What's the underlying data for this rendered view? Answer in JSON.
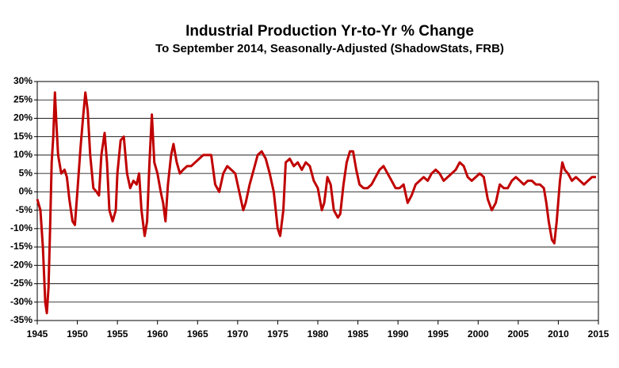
{
  "chart_data": {
    "type": "line",
    "title": "Industrial Production Yr-to-Yr % Change",
    "subtitle": "To September 2014, Seasonally-Adjusted (ShadowStats, FRB)",
    "color": "#c00000",
    "grid": true,
    "x": [
      1945.0,
      1945.4,
      1945.7,
      1946.0,
      1946.2,
      1946.4,
      1946.6,
      1946.8,
      1947.0,
      1947.2,
      1947.4,
      1947.6,
      1948.0,
      1948.4,
      1948.7,
      1949.0,
      1949.4,
      1949.7,
      1950.0,
      1950.4,
      1950.7,
      1951.0,
      1951.3,
      1951.6,
      1952.0,
      1952.4,
      1952.7,
      1953.0,
      1953.4,
      1953.7,
      1954.0,
      1954.4,
      1954.8,
      1955.0,
      1955.4,
      1955.8,
      1956.2,
      1956.6,
      1957.0,
      1957.4,
      1957.7,
      1958.0,
      1958.4,
      1958.7,
      1959.0,
      1959.3,
      1959.6,
      1960.0,
      1960.4,
      1960.7,
      1961.0,
      1961.3,
      1961.7,
      1962.0,
      1962.4,
      1962.8,
      1963.2,
      1963.7,
      1964.2,
      1964.7,
      1965.2,
      1965.7,
      1966.2,
      1966.7,
      1967.2,
      1967.7,
      1968.2,
      1968.7,
      1969.2,
      1969.7,
      1970.2,
      1970.7,
      1971.0,
      1971.5,
      1972.0,
      1972.5,
      1973.0,
      1973.5,
      1974.0,
      1974.5,
      1975.0,
      1975.3,
      1975.7,
      1976.0,
      1976.5,
      1977.0,
      1977.5,
      1978.0,
      1978.5,
      1979.0,
      1979.5,
      1980.0,
      1980.5,
      1980.8,
      1981.2,
      1981.6,
      1982.0,
      1982.5,
      1982.8,
      1983.2,
      1983.6,
      1984.0,
      1984.4,
      1984.8,
      1985.2,
      1985.7,
      1986.2,
      1986.7,
      1987.2,
      1987.7,
      1988.2,
      1988.7,
      1989.2,
      1989.7,
      1990.2,
      1990.7,
      1991.2,
      1991.7,
      1992.2,
      1992.7,
      1993.2,
      1993.7,
      1994.2,
      1994.7,
      1995.2,
      1995.7,
      1996.2,
      1996.7,
      1997.2,
      1997.7,
      1998.2,
      1998.7,
      1999.2,
      1999.7,
      2000.2,
      2000.7,
      2001.2,
      2001.7,
      2002.2,
      2002.7,
      2003.2,
      2003.7,
      2004.2,
      2004.7,
      2005.2,
      2005.7,
      2006.2,
      2006.7,
      2007.2,
      2007.7,
      2008.2,
      2008.5,
      2008.8,
      2009.2,
      2009.5,
      2009.8,
      2010.2,
      2010.5,
      2010.8,
      2011.2,
      2011.7,
      2012.2,
      2012.7,
      2013.2,
      2013.7,
      2014.2,
      2014.7
    ],
    "values": [
      -2,
      -5,
      -15,
      -30,
      -33,
      -26,
      -10,
      8,
      15,
      27,
      18,
      10,
      5,
      6,
      4,
      -2,
      -8,
      -9,
      0,
      12,
      20,
      27,
      22,
      10,
      1,
      0,
      -1,
      10,
      16,
      8,
      -5,
      -8,
      -5,
      5,
      14,
      15,
      5,
      1,
      3,
      2,
      5,
      -5,
      -12,
      -8,
      8,
      21,
      8,
      5,
      0,
      -3,
      -8,
      2,
      10,
      13,
      8,
      5,
      6,
      7,
      7,
      8,
      9,
      10,
      10,
      10,
      2,
      0,
      5,
      7,
      6,
      5,
      0,
      -5,
      -3,
      2,
      6,
      10,
      11,
      9,
      5,
      0,
      -10,
      -12,
      -5,
      8,
      9,
      7,
      8,
      6,
      8,
      7,
      3,
      1,
      -5,
      -3,
      4,
      2,
      -5,
      -7,
      -6,
      2,
      8,
      11,
      11,
      6,
      2,
      1,
      1,
      2,
      4,
      6,
      7,
      5,
      3,
      1,
      1,
      2,
      -3,
      -1,
      2,
      3,
      4,
      3,
      5,
      6,
      5,
      3,
      4,
      5,
      6,
      8,
      7,
      4,
      3,
      4,
      5,
      4,
      -2,
      -5,
      -3,
      2,
      1,
      1,
      3,
      4,
      3,
      2,
      3,
      3,
      2,
      2,
      1,
      -3,
      -8,
      -13,
      -14,
      -8,
      3,
      8,
      6,
      5,
      3,
      4,
      3,
      2,
      3,
      4,
      4
    ],
    "xlim": [
      1945,
      2015
    ],
    "xticks": [
      1945,
      1950,
      1955,
      1960,
      1965,
      1970,
      1975,
      1980,
      1985,
      1990,
      1995,
      2000,
      2005,
      2010,
      2015
    ],
    "ylim": [
      -35,
      30
    ],
    "yticks": [
      {
        "value": 30,
        "label": "30%"
      },
      {
        "value": 25,
        "label": "25%"
      },
      {
        "value": 20,
        "label": "20%"
      },
      {
        "value": 15,
        "label": "15%"
      },
      {
        "value": 10,
        "label": "10%"
      },
      {
        "value": 5,
        "label": "5%"
      },
      {
        "value": 0,
        "label": "0%"
      },
      {
        "value": -5,
        "label": "-5%"
      },
      {
        "value": -10,
        "label": "-10%"
      },
      {
        "value": -15,
        "label": "-15%"
      },
      {
        "value": -20,
        "label": "-20%"
      },
      {
        "value": -25,
        "label": "-25%"
      },
      {
        "value": -30,
        "label": "-30%"
      },
      {
        "value": -35,
        "label": "-35%"
      }
    ]
  }
}
